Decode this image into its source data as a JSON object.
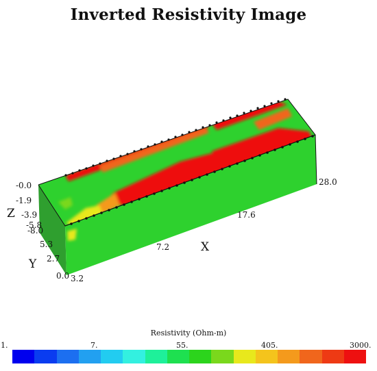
{
  "title": "Inverted Resistivity Image",
  "axes": {
    "z_label": "Z",
    "y_label": "Y",
    "x_label": "X",
    "z_ticks": [
      "-0.0",
      "-1.9",
      "-3.9",
      "-5.8",
      "-8.0"
    ],
    "y_ticks": [
      "5.3",
      "2.7",
      "0.0"
    ],
    "x_ticks": [
      "3.2",
      "7.2",
      "17.6",
      "28.0"
    ]
  },
  "legend": {
    "title": "Resistivity (Ohm-m)",
    "tick_labels": [
      "1.",
      "7.",
      "55.",
      "405.",
      "3000."
    ],
    "colors": [
      "#0000ee",
      "#0a3cf0",
      "#1c6ff0",
      "#22a0f0",
      "#22ccf0",
      "#33f0e0",
      "#1ef09a",
      "#1ee050",
      "#2cd41c",
      "#7ad81c",
      "#e8e81c",
      "#f4c41c",
      "#f49a1c",
      "#f0661c",
      "#ee3a14",
      "#ee1010"
    ]
  },
  "colors": {
    "background_green": "#2ed12e",
    "side_green": "#2f9f2f",
    "high_red": "#ee1111",
    "mid_orange": "#f49a1c",
    "mid_yellow": "#e8e81c",
    "outline": "#111111"
  }
}
